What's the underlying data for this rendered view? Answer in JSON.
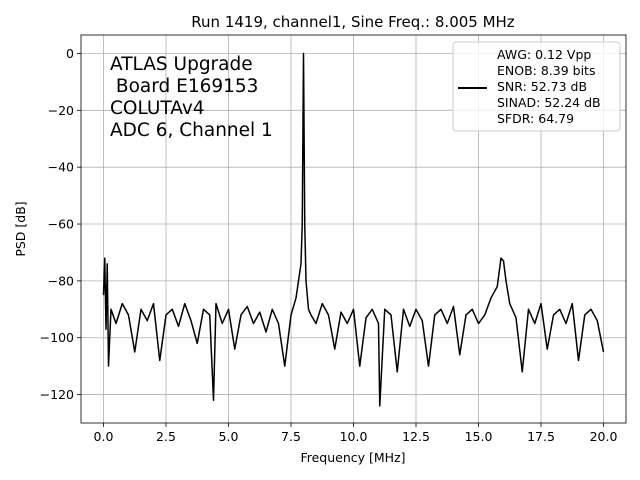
{
  "chart_data": {
    "type": "line",
    "title": "Run 1419, channel1, Sine Freq.: 8.005 MHz",
    "xlabel": "Frequency [MHz]",
    "ylabel": "PSD [dB]",
    "xlim": [
      -0.9,
      20.9
    ],
    "ylim": [
      -130,
      6.5
    ],
    "xticks": [
      0.0,
      2.5,
      5.0,
      7.5,
      10.0,
      12.5,
      15.0,
      17.5,
      20.0
    ],
    "xtick_labels": [
      "0.0",
      "2.5",
      "5.0",
      "7.5",
      "10.0",
      "12.5",
      "15.0",
      "17.5",
      "20.0"
    ],
    "yticks": [
      0,
      -20,
      -40,
      -60,
      -80,
      -100,
      -120
    ],
    "ytick_labels": [
      "0",
      "−20",
      "−40",
      "−60",
      "−80",
      "−100",
      "−120"
    ],
    "grid": true,
    "line_color": "#000000",
    "annotation_lines": [
      "ATLAS Upgrade",
      " Board E169153",
      "COLUTAv4",
      "ADC 6, Channel 1"
    ],
    "legend_lines": [
      "AWG: 0.12 Vpp",
      "ENOB: 8.39 bits",
      "SNR: 52.73 dB",
      "SINAD: 52.24 dB",
      "SFDR: 64.79"
    ],
    "legend_position": "top-right",
    "series": [
      {
        "x": [
          0.0,
          0.05,
          0.1,
          0.15,
          0.2,
          0.3,
          0.5,
          0.75,
          1.0,
          1.25,
          1.5,
          1.75,
          2.0,
          2.25,
          2.5,
          2.75,
          3.0,
          3.25,
          3.5,
          3.75,
          4.0,
          4.25,
          4.4,
          4.5,
          4.75,
          5.0,
          5.25,
          5.5,
          5.75,
          6.0,
          6.25,
          6.5,
          6.75,
          7.0,
          7.25,
          7.5,
          7.7,
          7.8,
          7.9,
          7.95,
          8.0,
          8.05,
          8.1,
          8.2,
          8.3,
          8.5,
          8.75,
          9.0,
          9.25,
          9.5,
          9.75,
          10.0,
          10.25,
          10.5,
          10.75,
          11.0,
          11.05,
          11.25,
          11.5,
          11.75,
          12.0,
          12.25,
          12.5,
          12.75,
          13.0,
          13.25,
          13.5,
          13.75,
          14.0,
          14.25,
          14.5,
          14.75,
          15.0,
          15.25,
          15.5,
          15.75,
          15.9,
          16.0,
          16.1,
          16.25,
          16.5,
          16.75,
          17.0,
          17.25,
          17.5,
          17.75,
          18.0,
          18.25,
          18.5,
          18.75,
          19.0,
          19.25,
          19.5,
          19.75,
          20.0
        ],
        "y": [
          -85,
          -72,
          -97,
          -74,
          -110,
          -90,
          -95,
          -88,
          -92,
          -105,
          -90,
          -94,
          -88,
          -108,
          -92,
          -90,
          -96,
          -88,
          -94,
          -102,
          -90,
          -92,
          -122,
          -88,
          -95,
          -90,
          -104,
          -92,
          -89,
          -95,
          -91,
          -98,
          -90,
          -95,
          -110,
          -92,
          -86,
          -80,
          -74,
          -60,
          0,
          -60,
          -80,
          -90,
          -92,
          -95,
          -88,
          -92,
          -104,
          -91,
          -95,
          -90,
          -110,
          -93,
          -90,
          -95,
          -124,
          -90,
          -92,
          -112,
          -90,
          -96,
          -90,
          -94,
          -110,
          -92,
          -90,
          -95,
          -89,
          -106,
          -92,
          -90,
          -95,
          -92,
          -86,
          -82,
          -72,
          -73,
          -80,
          -88,
          -93,
          -112,
          -90,
          -95,
          -88,
          -104,
          -92,
          -90,
          -95,
          -88,
          -108,
          -92,
          -90,
          -94,
          -105
        ]
      }
    ]
  }
}
